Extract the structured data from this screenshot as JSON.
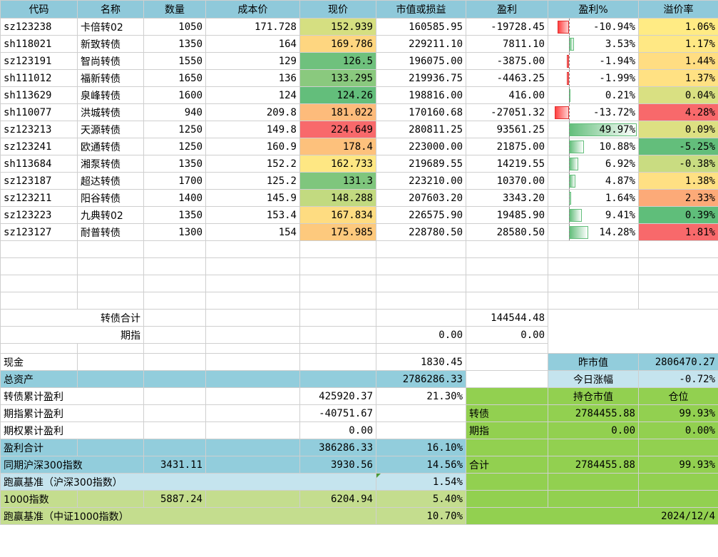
{
  "headers": [
    "代码",
    "名称",
    "数量",
    "成本价",
    "现价",
    "市值或损益",
    "盈利",
    "盈利%",
    "溢价率"
  ],
  "rows": [
    {
      "code": "sz123238",
      "name": "卡倍转02",
      "qty": "1050",
      "cost": "171.728",
      "price": "152.939",
      "price_color": "#d5df81",
      "value": "160585.95",
      "profit": "-19728.45",
      "pct": "-10.94%",
      "pct_num": -10.94,
      "prem": "1.06%",
      "prem_color": "#ffeb84"
    },
    {
      "code": "sh118021",
      "name": "新致转债",
      "qty": "1350",
      "cost": "164",
      "price": "169.786",
      "price_color": "#fed680",
      "value": "229211.10",
      "profit": "7811.10",
      "pct": "3.53%",
      "pct_num": 3.53,
      "prem": "1.17%",
      "prem_color": "#ffe884"
    },
    {
      "code": "sz123191",
      "name": "智尚转债",
      "qty": "1550",
      "cost": "129",
      "price": "126.5",
      "price_color": "#6fc17d",
      "value": "196075.00",
      "profit": "-3875.00",
      "pct": "-1.94%",
      "pct_num": -1.94,
      "prem": "1.44%",
      "prem_color": "#ffdd82"
    },
    {
      "code": "sh111012",
      "name": "福新转债",
      "qty": "1650",
      "cost": "136",
      "price": "133.295",
      "price_color": "#8ac97e",
      "value": "219936.75",
      "profit": "-4463.25",
      "pct": "-1.99%",
      "pct_num": -1.99,
      "prem": "1.37%",
      "prem_color": "#ffe183"
    },
    {
      "code": "sh113629",
      "name": "泉峰转债",
      "qty": "1600",
      "cost": "124",
      "price": "124.26",
      "price_color": "#63be7b",
      "value": "198816.00",
      "profit": "416.00",
      "pct": "0.21%",
      "pct_num": 0.21,
      "prem": "0.04%",
      "prem_color": "#d9e082"
    },
    {
      "code": "sh110077",
      "name": "洪城转债",
      "qty": "940",
      "cost": "209.8",
      "price": "181.022",
      "price_color": "#fdbb7b",
      "value": "170160.68",
      "profit": "-27051.32",
      "pct": "-13.72%",
      "pct_num": -13.72,
      "prem": "4.28%",
      "prem_color": "#f8696b"
    },
    {
      "code": "sz123213",
      "name": "天源转债",
      "qty": "1250",
      "cost": "149.8",
      "price": "224.649",
      "price_color": "#f8696b",
      "value": "280811.25",
      "profit": "93561.25",
      "pct": "49.97%",
      "pct_num": 49.97,
      "prem": "0.09%",
      "prem_color": "#dde082"
    },
    {
      "code": "sz123241",
      "name": "欧通转债",
      "qty": "1250",
      "cost": "160.9",
      "price": "178.4",
      "price_color": "#fdc17c",
      "value": "223000.00",
      "profit": "21875.00",
      "pct": "10.88%",
      "pct_num": 10.88,
      "prem": "-5.25%",
      "prem_color": "#63be7b"
    },
    {
      "code": "sh113684",
      "name": "湘泵转债",
      "qty": "1350",
      "cost": "152.2",
      "price": "162.733",
      "price_color": "#fee783",
      "value": "219689.55",
      "profit": "14219.55",
      "pct": "6.92%",
      "pct_num": 6.92,
      "prem": "-0.38%",
      "prem_color": "#c9dc81"
    },
    {
      "code": "sz123187",
      "name": "超达转债",
      "qty": "1700",
      "cost": "125.2",
      "price": "131.3",
      "price_color": "#7fc67d",
      "value": "223210.00",
      "profit": "10370.00",
      "pct": "4.87%",
      "pct_num": 4.87,
      "prem": "1.38%",
      "prem_color": "#ffe083"
    },
    {
      "code": "sz123211",
      "name": "阳谷转债",
      "qty": "1400",
      "cost": "145.9",
      "price": "148.288",
      "price_color": "#c2da80",
      "value": "207603.20",
      "profit": "3343.20",
      "pct": "1.64%",
      "pct_num": 1.64,
      "prem": "2.33%",
      "prem_color": "#fcaa78"
    },
    {
      "code": "sz123223",
      "name": "九典转02",
      "qty": "1350",
      "cost": "153.4",
      "price": "167.834",
      "price_color": "#fedc81",
      "value": "226575.90",
      "profit": "19485.90",
      "pct": "9.41%",
      "pct_num": 9.41,
      "prem": "0.39%",
      "prem_color": "#5fbe7a"
    },
    {
      "code": "sz123127",
      "name": "耐普转债",
      "qty": "1300",
      "cost": "154",
      "price": "175.985",
      "price_color": "#fdc97d",
      "value": "228780.50",
      "profit": "28580.50",
      "pct": "14.28%",
      "pct_num": 14.28,
      "prem": "1.81%",
      "prem_color": "#f8696b"
    }
  ],
  "totals": {
    "bond_total_label": "转债合计",
    "bond_total_value": "144544.48",
    "futures_label": "期指",
    "futures_value": "0.00",
    "futures_profit": "0.00"
  },
  "summary": {
    "cash_label": "现金",
    "cash_value": "1830.45",
    "yest_label": "昨市值",
    "yest_value": "2806470.27",
    "assets_label": "总资产",
    "assets_value": "2786286.33",
    "today_label": "今日涨幅",
    "today_value": "-0.72%",
    "bond_cum_label": "转债累计盈利",
    "bond_cum_value": "425920.37",
    "bond_cum_pct": "21.30%",
    "hold_label": "持仓市值",
    "pos_label": "仓位",
    "fut_cum_label": "期指累计盈利",
    "fut_cum_value": "-40751.67",
    "bond_hold_label": "转债",
    "bond_hold_value": "2784455.88",
    "bond_hold_pct": "99.93%",
    "opt_cum_label": "期权累计盈利",
    "opt_cum_value": "0.00",
    "fut_hold_label": "期指",
    "fut_hold_value": "0.00",
    "fut_hold_pct": "0.00%",
    "profit_total_label": "盈利合计",
    "profit_total_value": "386286.33",
    "profit_total_pct": "16.10%",
    "hs300_label": "同期沪深300指数",
    "hs300_base": "3431.11",
    "hs300_now": "3930.56",
    "hs300_pct": "14.56%",
    "sum_label": "合计",
    "sum_value": "2784455.88",
    "sum_pct": "99.93%",
    "beat_hs300_label": "跑赢基准（沪深300指数）",
    "beat_hs300_value": "1.54%",
    "zz1000_label": "1000指数",
    "zz1000_base": "5887.24",
    "zz1000_now": "6204.94",
    "zz1000_pct": "5.40%",
    "beat_zz1000_label": "跑赢基准（中证1000指数）",
    "beat_zz1000_value": "10.70%",
    "date": "2024/12/4"
  }
}
